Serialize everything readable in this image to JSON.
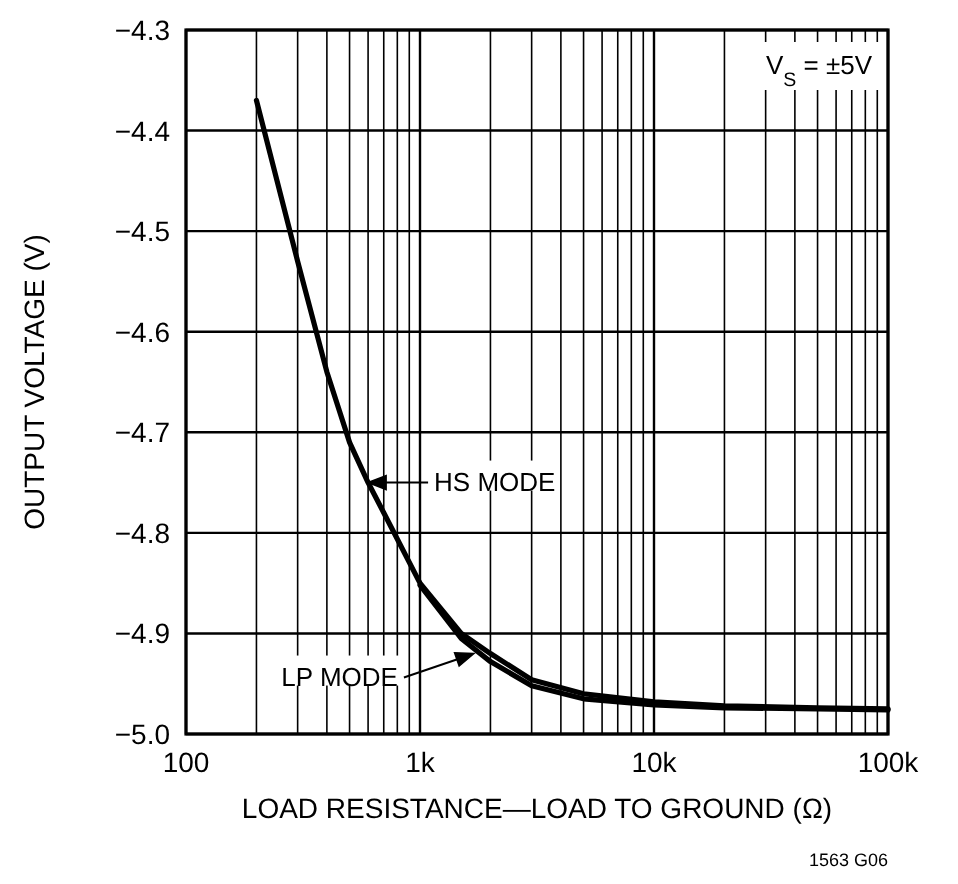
{
  "chart_data": {
    "type": "line",
    "xlabel": "LOAD RESISTANCE—LOAD TO GROUND (Ω)",
    "ylabel": "OUTPUT VOLTAGE (V)",
    "log": "x",
    "grid": true,
    "marker": "none",
    "line_style": "solid",
    "xlim": [
      100,
      100000
    ],
    "ylim": [
      -5.0,
      -4.3
    ],
    "xticks": [
      100,
      {
        "value": 200,
        "label": null
      },
      {
        "value": 300,
        "label": null
      },
      {
        "value": 400,
        "label": null
      },
      {
        "value": 500,
        "label": null
      },
      {
        "value": 600,
        "label": null
      },
      {
        "value": 700,
        "label": null
      },
      {
        "value": 800,
        "label": null
      },
      {
        "value": 900,
        "label": null
      },
      {
        "value": 1000,
        "label": "1k"
      },
      {
        "value": 2000,
        "label": null
      },
      {
        "value": 3000,
        "label": null
      },
      {
        "value": 4000,
        "label": null
      },
      {
        "value": 5000,
        "label": null
      },
      {
        "value": 6000,
        "label": null
      },
      {
        "value": 7000,
        "label": null
      },
      {
        "value": 8000,
        "label": null
      },
      {
        "value": 9000,
        "label": null
      },
      {
        "value": 10000,
        "label": "10k"
      },
      {
        "value": 20000,
        "label": null
      },
      {
        "value": 30000,
        "label": null
      },
      {
        "value": 40000,
        "label": null
      },
      {
        "value": 50000,
        "label": null
      },
      {
        "value": 60000,
        "label": null
      },
      {
        "value": 70000,
        "label": null
      },
      {
        "value": 80000,
        "label": null
      },
      {
        "value": 90000,
        "label": null
      },
      {
        "value": 100000,
        "label": "100k"
      }
    ],
    "yticks": [
      {
        "value": -5.0,
        "label": "−5.0"
      },
      {
        "value": -4.9,
        "label": "−4.9"
      },
      {
        "value": -4.8,
        "label": "−4.8"
      },
      {
        "value": -4.7,
        "label": "−4.7"
      },
      {
        "value": -4.6,
        "label": "−4.6"
      },
      {
        "value": -4.5,
        "label": "−4.5"
      },
      {
        "value": -4.4,
        "label": "−4.4"
      },
      {
        "value": -4.3,
        "label": "−4.3"
      }
    ],
    "x": [
      200,
      300,
      400,
      500,
      600,
      700,
      1000,
      1500,
      2000,
      3000,
      5000,
      10000,
      20000,
      50000,
      100000
    ],
    "series": [
      {
        "color": "#000000",
        "values": [
          -4.37,
          -4.53,
          -4.64,
          -4.71,
          -4.75,
          -4.78,
          -4.85,
          -4.9,
          -4.92,
          -4.946,
          -4.96,
          -4.968,
          -4.972,
          -4.974,
          -4.975
        ]
      },
      {
        "color": "#000000",
        "x": [
          1000,
          1500,
          2000,
          3000,
          5000,
          10000,
          20000,
          50000,
          100000
        ],
        "values": [
          -4.852,
          -4.905,
          -4.928,
          -4.952,
          -4.965,
          -4.971,
          -4.974,
          -4.975,
          -4.976
        ]
      }
    ],
    "annotations": [
      "V$_{S}$ = ±5V",
      {
        "text": "HS MODE",
        "x": 600,
        "y": -4.75
      },
      {
        "text": "LP MODE",
        "x": 1700,
        "y": -4.92
      },
      "1563 G06"
    ]
  }
}
